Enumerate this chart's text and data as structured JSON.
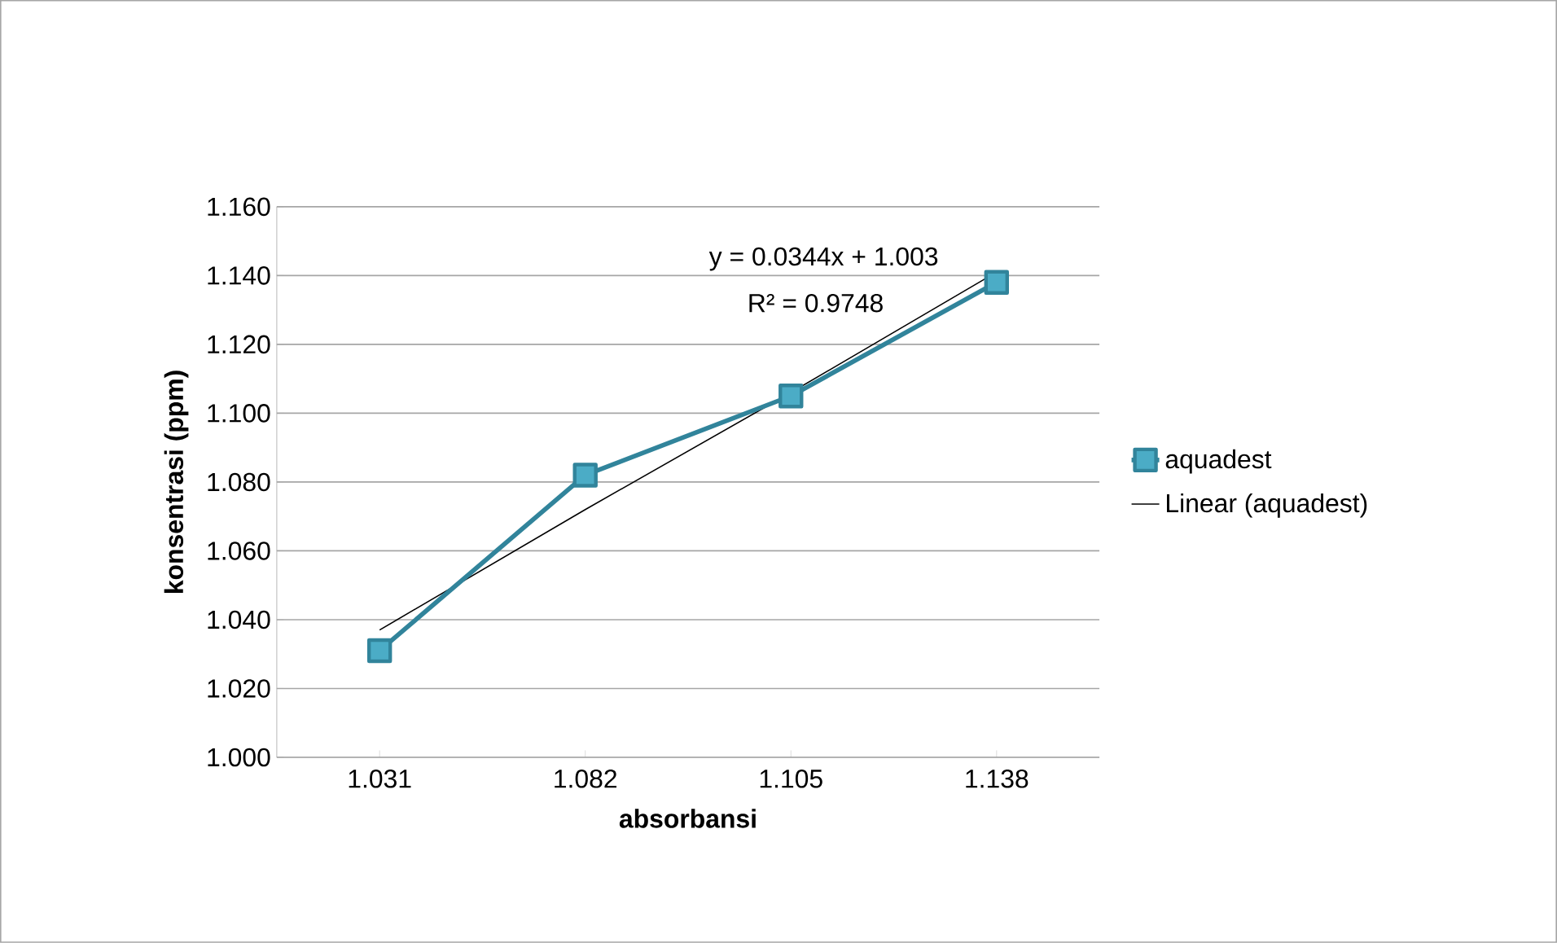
{
  "chart_data": {
    "type": "line",
    "xlabel": "absorbansi",
    "ylabel": "konsentrasi (ppm)",
    "categories": [
      "1.031",
      "1.082",
      "1.105",
      "1.138"
    ],
    "series": [
      {
        "name": "aquadest",
        "color": "#31849b",
        "marker": "square",
        "values": [
          1.031,
          1.082,
          1.105,
          1.138
        ]
      },
      {
        "name": "Linear (aquadest)",
        "color": "#000000",
        "marker": "none",
        "line_style": "solid",
        "values": [
          1.037,
          1.072,
          1.106,
          1.141
        ]
      }
    ],
    "ylim": [
      1.0,
      1.16
    ],
    "yticks": [
      {
        "value": 1.0,
        "label": "1.000"
      },
      {
        "value": 1.02,
        "label": "1.020"
      },
      {
        "value": 1.04,
        "label": "1.040"
      },
      {
        "value": 1.06,
        "label": "1.060"
      },
      {
        "value": 1.08,
        "label": "1.080"
      },
      {
        "value": 1.1,
        "label": "1.100"
      },
      {
        "value": 1.12,
        "label": "1.120"
      },
      {
        "value": 1.14,
        "label": "1.140"
      },
      {
        "value": 1.16,
        "label": "1.160"
      }
    ],
    "grid": "y",
    "legend": "right",
    "annotations": [
      "y = 0.0344x + 1.003",
      "R² = 0.9748"
    ]
  }
}
